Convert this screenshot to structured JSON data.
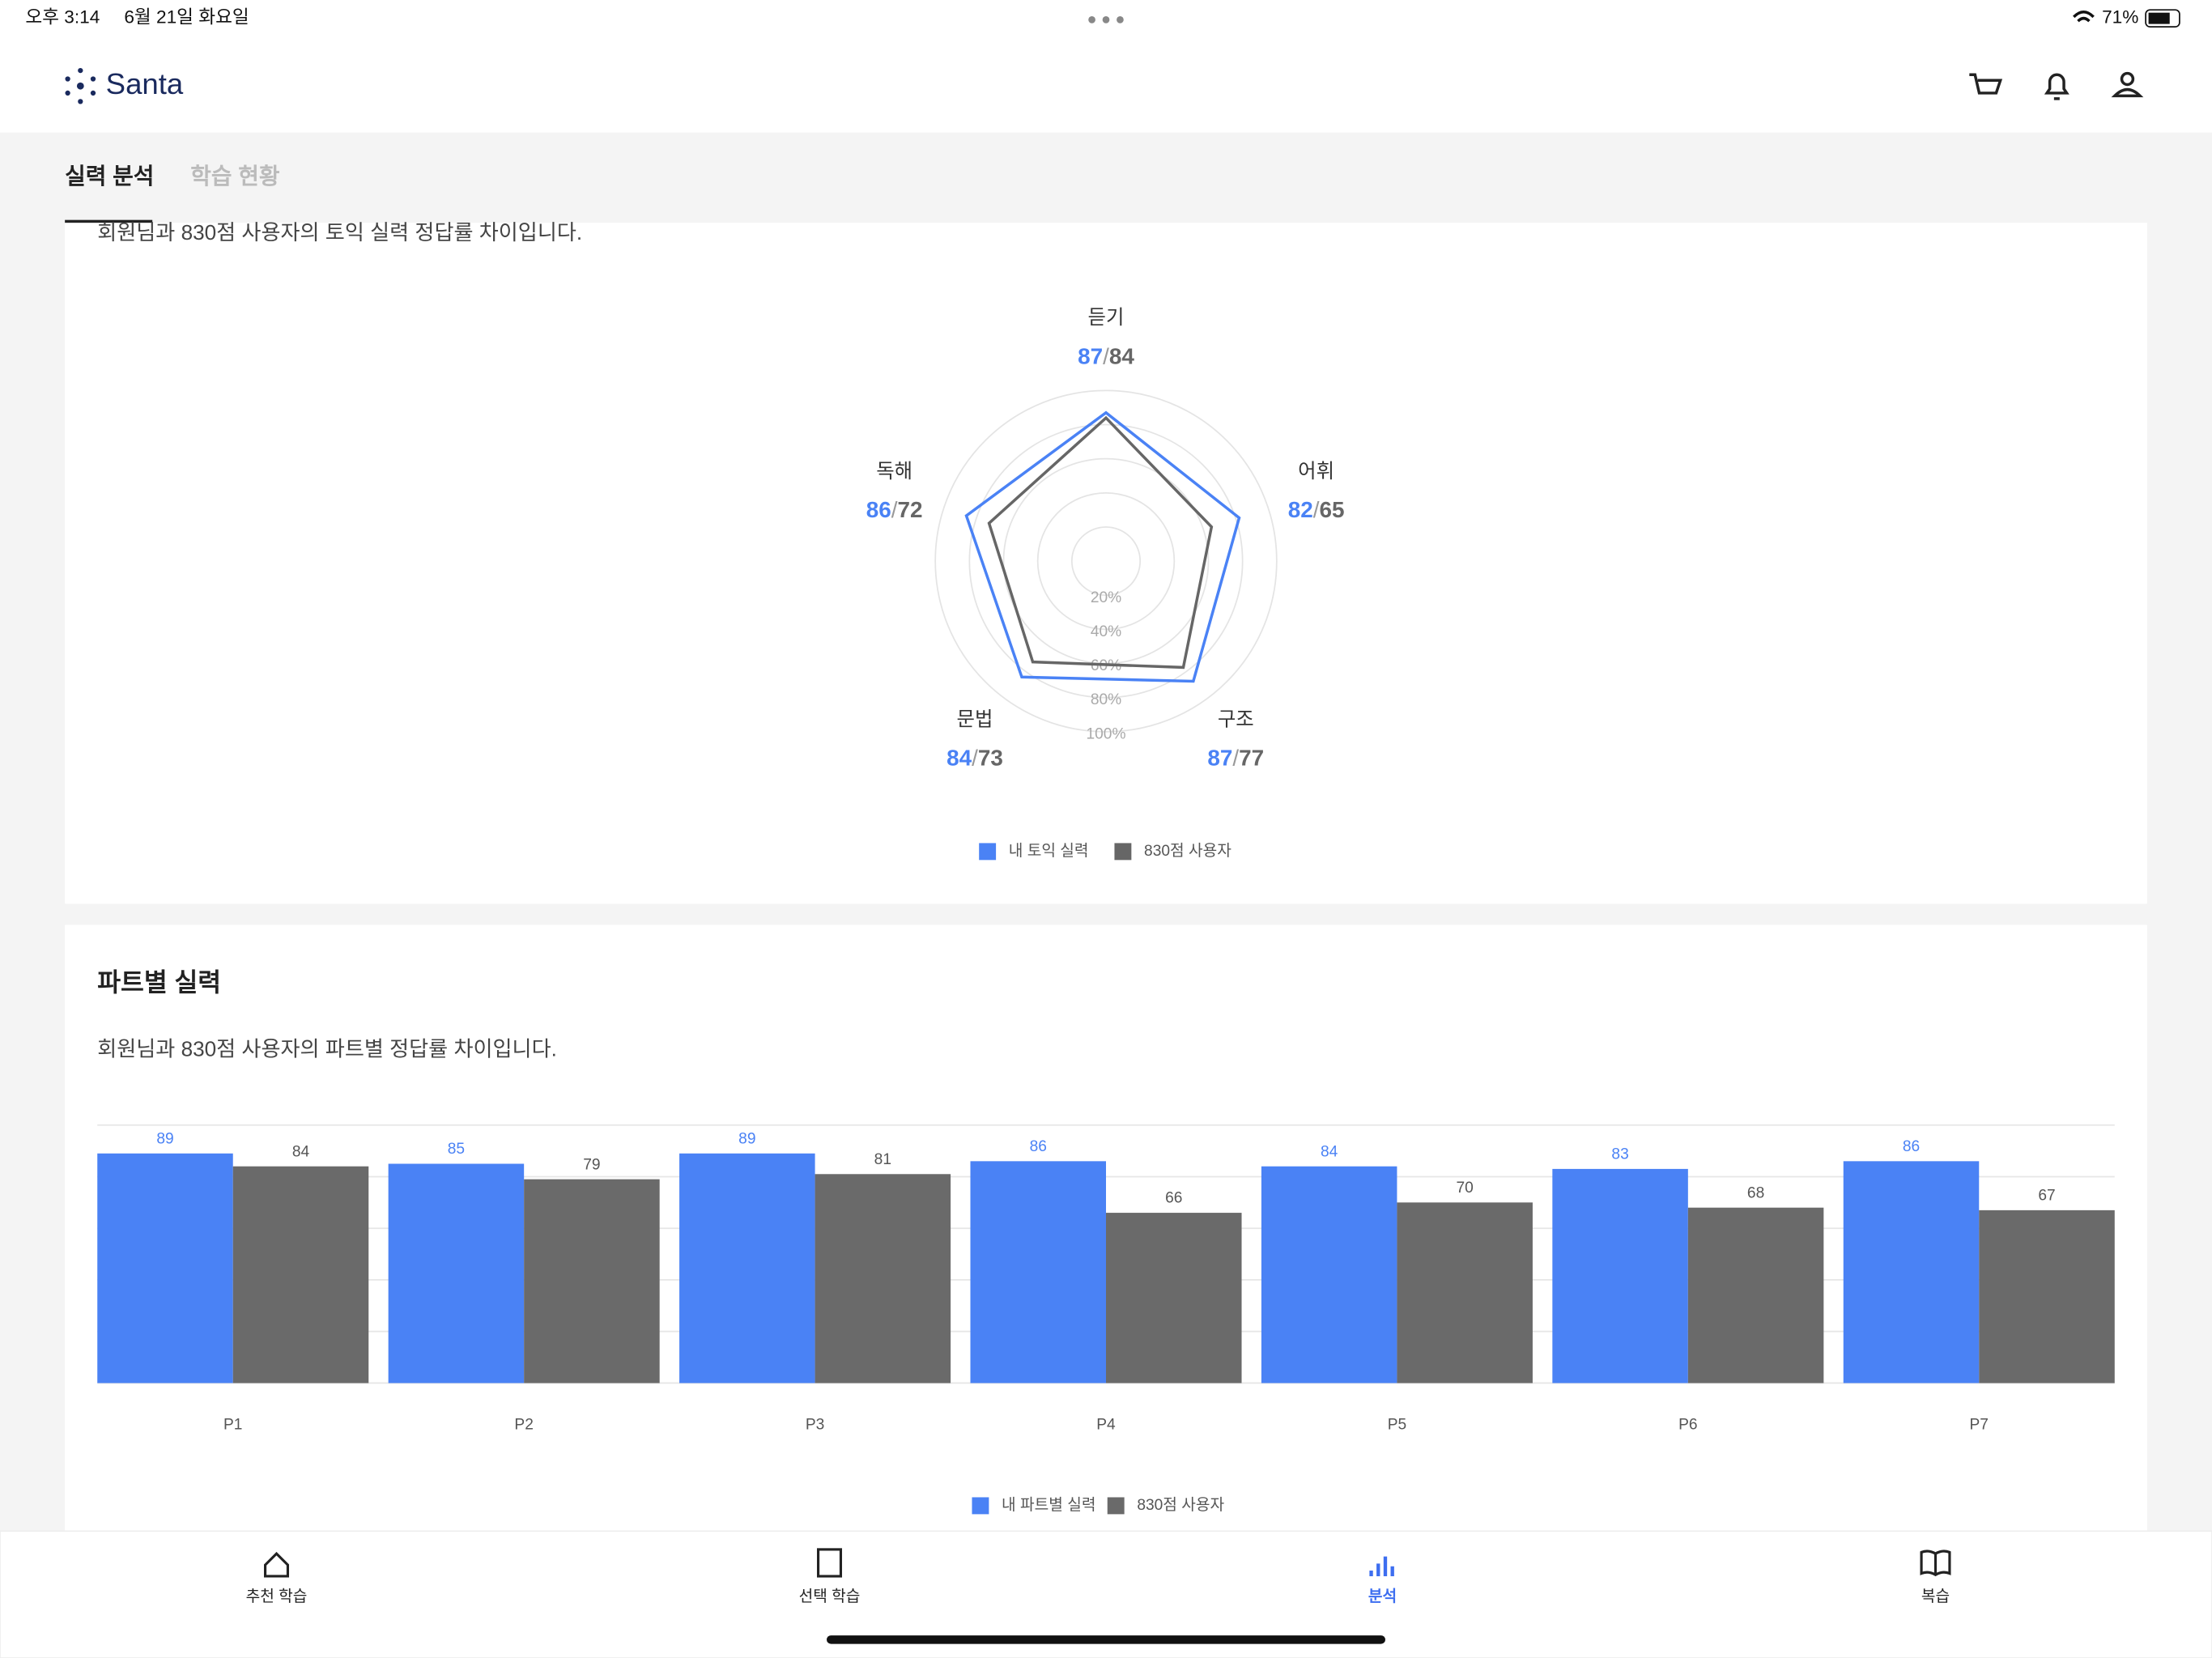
{
  "status_bar": {
    "time": "오후 3:14",
    "date": "6월 21일 화요일",
    "battery": "71%"
  },
  "header": {
    "logo": "Santa"
  },
  "tabs": [
    "실력 분석",
    "학습 현황"
  ],
  "chart_data": [
    {
      "type": "radar",
      "subtitle": "회원님과 830점 사용자의 토익 실력 정답률 차이입니다.",
      "categories": [
        "듣기",
        "어휘",
        "구조",
        "문법",
        "독해"
      ],
      "series": [
        {
          "name": "내 토익 실력",
          "color": "#4a82f5",
          "values": [
            87,
            82,
            87,
            84,
            86
          ]
        },
        {
          "name": "830점 사용자",
          "color": "#666666",
          "values": [
            84,
            65,
            77,
            73,
            72
          ]
        }
      ],
      "value_separator": "/",
      "rlim": [
        0,
        100
      ],
      "rticks": [
        {
          "value": 20,
          "label": "20%"
        },
        {
          "value": 40,
          "label": "40%"
        },
        {
          "value": 60,
          "label": "60%"
        },
        {
          "value": 80,
          "label": "80%"
        },
        {
          "value": 100,
          "label": "100%"
        }
      ]
    },
    {
      "type": "bar",
      "title": "파트별 실력",
      "subtitle": "회원님과 830점 사용자의 파트별 정답률 차이입니다.",
      "categories": [
        "P1",
        "P2",
        "P3",
        "P4",
        "P5",
        "P6",
        "P7"
      ],
      "series": [
        {
          "name": "내 파트별 실력",
          "color": "#4a82f5",
          "values": [
            89,
            85,
            89,
            86,
            84,
            83,
            86
          ]
        },
        {
          "name": "830점 사용자",
          "color": "#6a6a6a",
          "values": [
            84,
            79,
            81,
            66,
            70,
            68,
            67
          ]
        }
      ],
      "ylim": [
        0,
        100
      ],
      "yticks": [
        0,
        20,
        40,
        60,
        80,
        100
      ],
      "grid": true
    }
  ],
  "bottom_nav": {
    "items": [
      "추천 학습",
      "선택 학습",
      "분석",
      "복습"
    ],
    "active_index": 2
  }
}
